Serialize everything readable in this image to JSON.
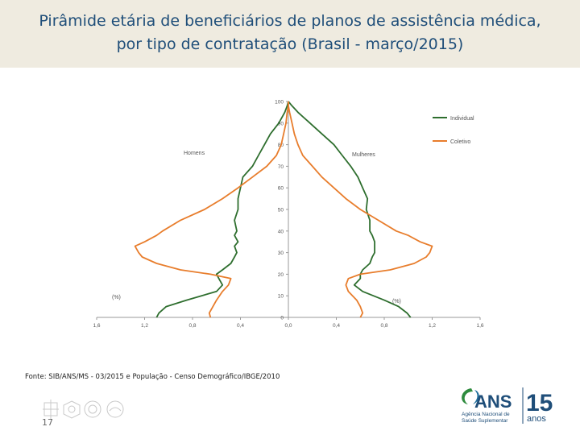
{
  "title": {
    "line1": "Pirâmide etária de beneficiários de planos de assistência médica,",
    "line2": "por tipo de contratação (Brasil - março/2015)"
  },
  "source": "Fonte: SIB/ANS/MS - 03/2015 e População - Censo Demográfico/IBGE/2010",
  "page_number": "17",
  "logo": {
    "name": "ANS",
    "tagline_1": "Agência Nacional de",
    "tagline_2": "Saúde Suplementar",
    "years_number": "15",
    "years_word": "anos"
  },
  "colors": {
    "individual": "#2e6e2e",
    "coletivo": "#e87d2c",
    "title": "#1f4e79",
    "band": "#efebe0"
  },
  "chart_data": {
    "type": "line",
    "title": "Pirâmide etária de beneficiários de planos de assistência médica, por tipo de contratação (Brasil - março/2015)",
    "left_label": "Homens",
    "right_label": "Mulheres",
    "unit_label_left": "(%)",
    "unit_label_right": "(%)",
    "x_ticks": [
      "1,6",
      "1,2",
      "0,8",
      "0,4",
      "0,0",
      "0,4",
      "0,8",
      "1,2",
      "1,6"
    ],
    "y_ticks": [
      "0",
      "10",
      "20",
      "30",
      "40",
      "50",
      "60",
      "70",
      "80",
      "90",
      "100"
    ],
    "xlim": [
      -1.6,
      1.6
    ],
    "ylim": [
      0,
      100
    ],
    "legend": {
      "position": "top-right",
      "entries": [
        "Individual",
        "Coletivo"
      ]
    },
    "series": [
      {
        "name": "Individual",
        "side": "Homens",
        "ages": [
          0,
          2,
          5,
          8,
          12,
          15,
          18,
          20,
          22,
          25,
          28,
          30,
          33,
          35,
          38,
          40,
          45,
          50,
          55,
          60,
          65,
          70,
          75,
          80,
          85,
          90,
          95,
          98,
          100
        ],
        "values": [
          1.1,
          1.08,
          1.02,
          0.85,
          0.6,
          0.55,
          0.58,
          0.6,
          0.55,
          0.48,
          0.45,
          0.43,
          0.45,
          0.42,
          0.45,
          0.43,
          0.45,
          0.42,
          0.42,
          0.4,
          0.38,
          0.3,
          0.25,
          0.2,
          0.15,
          0.08,
          0.03,
          0.01,
          0.0
        ]
      },
      {
        "name": "Individual",
        "side": "Mulheres",
        "ages": [
          0,
          2,
          5,
          8,
          12,
          15,
          18,
          20,
          22,
          25,
          28,
          30,
          33,
          35,
          38,
          40,
          45,
          50,
          55,
          60,
          65,
          70,
          75,
          80,
          85,
          90,
          95,
          98,
          100
        ],
        "values": [
          1.02,
          0.99,
          0.92,
          0.8,
          0.62,
          0.55,
          0.6,
          0.6,
          0.62,
          0.68,
          0.7,
          0.72,
          0.72,
          0.72,
          0.7,
          0.68,
          0.68,
          0.65,
          0.66,
          0.62,
          0.58,
          0.52,
          0.45,
          0.38,
          0.28,
          0.18,
          0.08,
          0.03,
          0.0
        ]
      },
      {
        "name": "Coletivo",
        "side": "Homens",
        "ages": [
          0,
          2,
          5,
          8,
          12,
          15,
          18,
          20,
          22,
          25,
          28,
          30,
          33,
          35,
          38,
          40,
          45,
          50,
          55,
          60,
          65,
          70,
          75,
          80,
          85,
          90,
          95,
          98,
          100
        ],
        "values": [
          0.65,
          0.66,
          0.63,
          0.6,
          0.55,
          0.5,
          0.48,
          0.65,
          0.9,
          1.1,
          1.22,
          1.25,
          1.28,
          1.2,
          1.1,
          1.05,
          0.9,
          0.7,
          0.55,
          0.42,
          0.3,
          0.18,
          0.1,
          0.06,
          0.04,
          0.02,
          0.01,
          0.0,
          0.0
        ]
      },
      {
        "name": "Coletivo",
        "side": "Mulheres",
        "ages": [
          0,
          2,
          5,
          8,
          12,
          15,
          18,
          20,
          22,
          25,
          28,
          30,
          33,
          35,
          38,
          40,
          45,
          50,
          55,
          60,
          65,
          70,
          75,
          80,
          85,
          90,
          95,
          98,
          100
        ],
        "values": [
          0.6,
          0.62,
          0.6,
          0.57,
          0.5,
          0.48,
          0.5,
          0.6,
          0.85,
          1.05,
          1.15,
          1.18,
          1.2,
          1.1,
          1.0,
          0.9,
          0.75,
          0.6,
          0.48,
          0.38,
          0.28,
          0.2,
          0.12,
          0.08,
          0.05,
          0.03,
          0.01,
          0.0,
          0.0
        ]
      }
    ]
  }
}
